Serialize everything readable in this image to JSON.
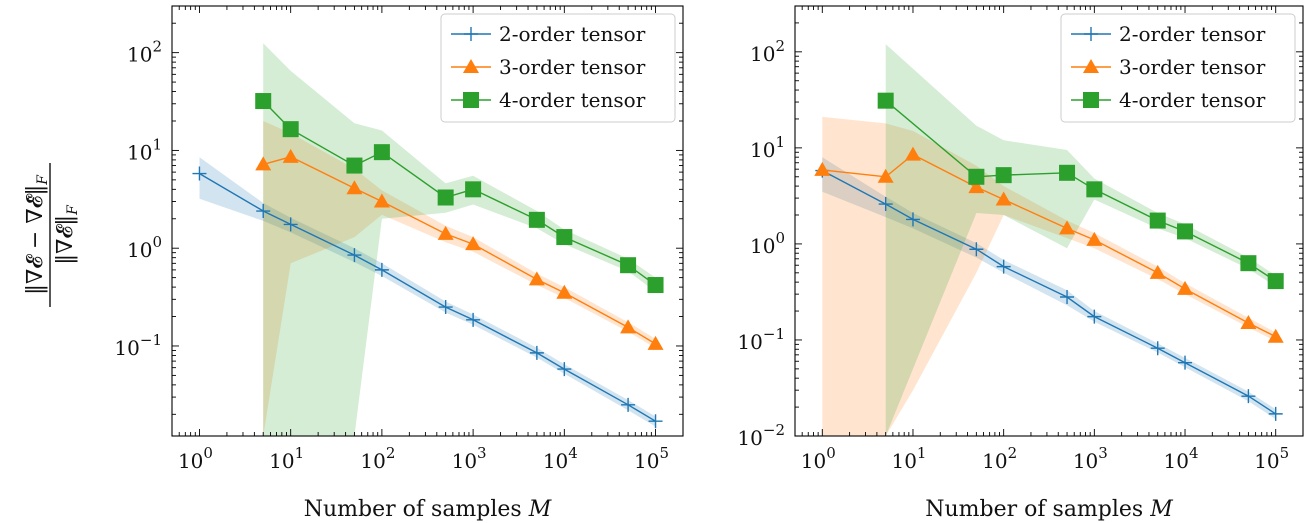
{
  "figure": {
    "ylabel_numerator": "‖∇𝓔 − ∇𝓔̂‖",
    "ylabel_numerator_sub": "F",
    "ylabel_denominator": "‖∇𝓔‖",
    "ylabel_denominator_sub": "F"
  },
  "chart_data": [
    {
      "type": "line",
      "title": "",
      "xlabel": "Number of samples",
      "xlabel_var": "M",
      "ylabel": "",
      "x_scale": "log",
      "y_scale": "log",
      "xlim": [
        0.5,
        200000
      ],
      "ylim": [
        0.012,
        300
      ],
      "xticks": [
        1,
        10,
        100,
        1000,
        10000,
        100000
      ],
      "xtick_labels": [
        {
          "base": "10",
          "exp": "0"
        },
        {
          "base": "10",
          "exp": "1"
        },
        {
          "base": "10",
          "exp": "2"
        },
        {
          "base": "10",
          "exp": "3"
        },
        {
          "base": "10",
          "exp": "4"
        },
        {
          "base": "10",
          "exp": "5"
        }
      ],
      "yticks": [
        0.1,
        1,
        10,
        100
      ],
      "ytick_labels": [
        {
          "base": "10",
          "exp": "−1"
        },
        {
          "base": "10",
          "exp": "0"
        },
        {
          "base": "10",
          "exp": "1"
        },
        {
          "base": "10",
          "exp": "2"
        }
      ],
      "grid": false,
      "legend_position": "top-right",
      "series": [
        {
          "name": "2-order tensor",
          "color": "#1f77b4",
          "marker": "plus",
          "x": [
            1,
            5,
            10,
            50,
            100,
            500,
            1000,
            5000,
            10000,
            50000,
            100000
          ],
          "y": [
            5.8,
            2.4,
            1.75,
            0.85,
            0.6,
            0.25,
            0.185,
            0.085,
            0.058,
            0.025,
            0.017
          ],
          "band_low": [
            3.2,
            1.9,
            1.45,
            0.72,
            0.52,
            0.22,
            0.165,
            0.076,
            0.052,
            0.022,
            0.015
          ],
          "band_high": [
            8.5,
            2.9,
            2.05,
            1.0,
            0.7,
            0.285,
            0.21,
            0.096,
            0.065,
            0.028,
            0.019
          ]
        },
        {
          "name": "3-order tensor",
          "color": "#ff7f0e",
          "marker": "triangle",
          "x": [
            5,
            10,
            50,
            100,
            500,
            1000,
            5000,
            10000,
            50000,
            100000
          ],
          "y": [
            7.2,
            8.6,
            4.1,
            3.0,
            1.4,
            1.1,
            0.48,
            0.35,
            0.155,
            0.105
          ],
          "band_low": [
            0.012,
            0.7,
            1.3,
            2.2,
            1.15,
            0.92,
            0.42,
            0.31,
            0.14,
            0.095
          ],
          "band_high": [
            20,
            15,
            6.5,
            3.9,
            1.7,
            1.3,
            0.55,
            0.4,
            0.175,
            0.118
          ]
        },
        {
          "name": "4-order tensor",
          "color": "#2ca02c",
          "marker": "square",
          "x": [
            5,
            10,
            50,
            100,
            500,
            1000,
            5000,
            10000,
            50000,
            100000
          ],
          "y": [
            32,
            16.5,
            7.0,
            9.6,
            3.3,
            4.0,
            1.95,
            1.3,
            0.67,
            0.42
          ],
          "band_low": [
            0.012,
            0.012,
            0.012,
            2.0,
            2.3,
            2.8,
            1.6,
            1.1,
            0.58,
            0.36
          ],
          "band_high": [
            125,
            65,
            19,
            16,
            4.6,
            5.5,
            2.4,
            1.55,
            0.78,
            0.5
          ]
        }
      ]
    },
    {
      "type": "line",
      "title": "",
      "xlabel": "Number of samples",
      "xlabel_var": "M",
      "ylabel": "",
      "x_scale": "log",
      "y_scale": "log",
      "xlim": [
        0.5,
        200000
      ],
      "ylim": [
        0.01,
        300
      ],
      "xticks": [
        1,
        10,
        100,
        1000,
        10000,
        100000
      ],
      "xtick_labels": [
        {
          "base": "10",
          "exp": "0"
        },
        {
          "base": "10",
          "exp": "1"
        },
        {
          "base": "10",
          "exp": "2"
        },
        {
          "base": "10",
          "exp": "3"
        },
        {
          "base": "10",
          "exp": "4"
        },
        {
          "base": "10",
          "exp": "5"
        }
      ],
      "yticks": [
        0.01,
        0.1,
        1,
        10,
        100
      ],
      "ytick_labels": [
        {
          "base": "10",
          "exp": "−2"
        },
        {
          "base": "10",
          "exp": "−1"
        },
        {
          "base": "10",
          "exp": "0"
        },
        {
          "base": "10",
          "exp": "1"
        },
        {
          "base": "10",
          "exp": "2"
        }
      ],
      "grid": false,
      "legend_position": "top-right",
      "series": [
        {
          "name": "2-order tensor",
          "color": "#1f77b4",
          "marker": "plus",
          "x": [
            1,
            5,
            10,
            50,
            100,
            500,
            1000,
            5000,
            10000,
            50000,
            100000
          ],
          "y": [
            5.8,
            2.6,
            1.8,
            0.88,
            0.58,
            0.28,
            0.175,
            0.082,
            0.058,
            0.026,
            0.017
          ],
          "band_low": [
            3.5,
            1.9,
            1.45,
            0.72,
            0.5,
            0.23,
            0.155,
            0.074,
            0.052,
            0.023,
            0.015
          ],
          "band_high": [
            8.0,
            3.1,
            2.1,
            1.02,
            0.68,
            0.33,
            0.2,
            0.092,
            0.065,
            0.029,
            0.019
          ]
        },
        {
          "name": "3-order tensor",
          "color": "#ff7f0e",
          "marker": "triangle",
          "x": [
            1,
            5,
            10,
            50,
            100,
            500,
            1000,
            5000,
            10000,
            50000,
            100000
          ],
          "y": [
            5.9,
            5.0,
            8.5,
            3.9,
            2.9,
            1.45,
            1.1,
            0.5,
            0.34,
            0.15,
            0.108
          ],
          "band_low": [
            0.01,
            0.01,
            0.03,
            0.5,
            2.0,
            1.15,
            0.9,
            0.43,
            0.3,
            0.135,
            0.097
          ],
          "band_high": [
            21,
            18,
            15,
            6.5,
            4.0,
            1.75,
            1.3,
            0.58,
            0.39,
            0.17,
            0.12
          ]
        },
        {
          "name": "4-order tensor",
          "color": "#2ca02c",
          "marker": "square",
          "x": [
            5,
            50,
            100,
            500,
            1000,
            5000,
            10000,
            50000,
            100000
          ],
          "y": [
            31,
            5.0,
            5.2,
            5.5,
            3.7,
            1.75,
            1.35,
            0.63,
            0.41
          ],
          "band_low": [
            0.01,
            2.1,
            2.0,
            0.9,
            2.9,
            1.45,
            1.15,
            0.55,
            0.36
          ],
          "band_high": [
            120,
            17,
            12,
            9.5,
            4.8,
            2.1,
            1.6,
            0.72,
            0.47
          ]
        }
      ]
    }
  ]
}
